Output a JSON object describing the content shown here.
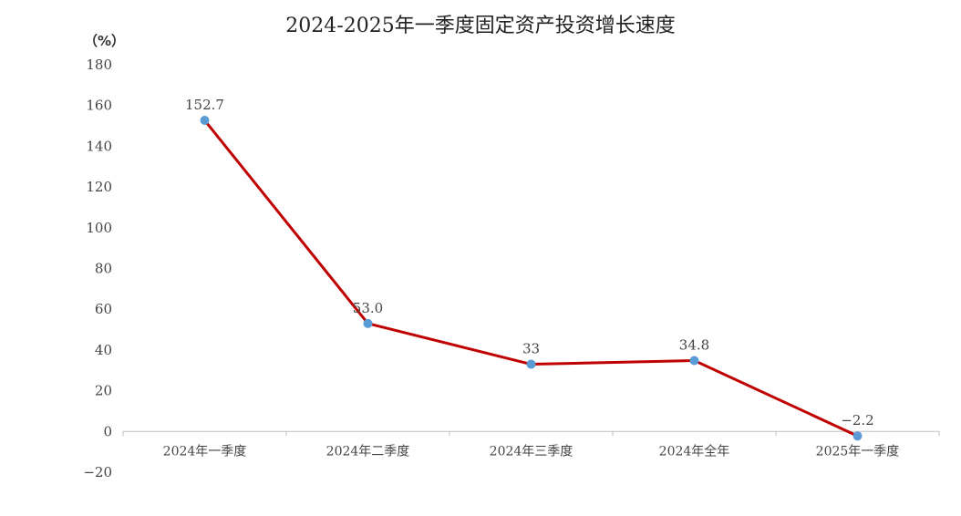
{
  "chart_data": {
    "type": "line",
    "title": "2024-2025年一季度固定资产投资增长速度",
    "unit": "（%）",
    "categories": [
      "2024年一季度",
      "2024年二季度",
      "2024年三季度",
      "2024年全年",
      "2025年一季度"
    ],
    "series": [
      {
        "values": [
          152.7,
          53.0,
          33,
          34.8,
          -2.2
        ]
      }
    ],
    "data_labels": [
      "152.7",
      "53.0",
      "33",
      "34.8",
      "-2.2"
    ],
    "y_ticks": [
      "180",
      "160",
      "140",
      "120",
      "100",
      "80",
      "60",
      "40",
      "20",
      "0",
      "-20"
    ],
    "ylim": [
      -20,
      180
    ],
    "grid": false,
    "line_color": "#c00000",
    "marker_color": "#5b9bd5"
  }
}
